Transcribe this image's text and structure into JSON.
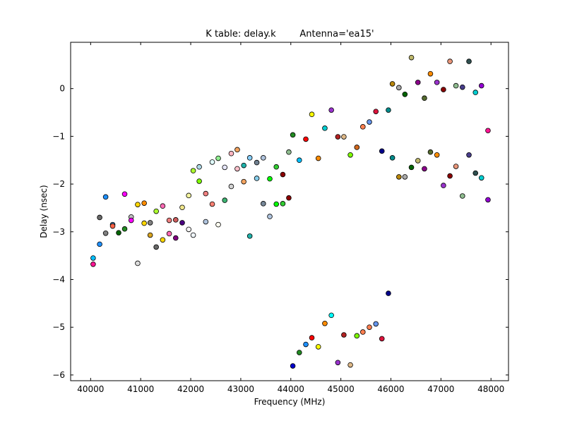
{
  "chart_data": {
    "type": "scatter",
    "title": "K table: delay.k",
    "subtitle": "Antenna='ea15'",
    "xlabel": "Frequency (MHz)",
    "ylabel": "Delay (nsec)",
    "xlim": [
      39600,
      48350
    ],
    "ylim": [
      -6.12,
      0.97
    ],
    "xticks": [
      40000,
      41000,
      42000,
      43000,
      44000,
      45000,
      46000,
      47000,
      48000
    ],
    "yticks": [
      -6,
      -5,
      -4,
      -3,
      -2,
      -1,
      0
    ],
    "grid": false,
    "marker_edge": "#000000",
    "points": [
      {
        "x": 40050,
        "y": -3.55,
        "color": "#00bfff"
      },
      {
        "x": 40050,
        "y": -3.68,
        "color": "#ff1493"
      },
      {
        "x": 40180,
        "y": -3.26,
        "color": "#1e90ff"
      },
      {
        "x": 40180,
        "y": -2.7,
        "color": "#696969"
      },
      {
        "x": 40300,
        "y": -2.27,
        "color": "#1e90ff"
      },
      {
        "x": 40300,
        "y": -3.03,
        "color": "#808080"
      },
      {
        "x": 40440,
        "y": -2.85,
        "color": "#4682b4"
      },
      {
        "x": 40440,
        "y": -2.88,
        "color": "#ff6347"
      },
      {
        "x": 40560,
        "y": -3.02,
        "color": "#006400"
      },
      {
        "x": 40680,
        "y": -2.21,
        "color": "#ff00ff"
      },
      {
        "x": 40680,
        "y": -2.94,
        "color": "#228b22"
      },
      {
        "x": 40810,
        "y": -2.69,
        "color": "#c0c0c0"
      },
      {
        "x": 40810,
        "y": -2.76,
        "color": "#ff00ff"
      },
      {
        "x": 40940,
        "y": -3.66,
        "color": "#dcdcdc"
      },
      {
        "x": 40940,
        "y": -2.43,
        "color": "#ffd700"
      },
      {
        "x": 41070,
        "y": -2.4,
        "color": "#ff8c00"
      },
      {
        "x": 41070,
        "y": -2.82,
        "color": "#ffd700"
      },
      {
        "x": 41190,
        "y": -3.07,
        "color": "#daa520"
      },
      {
        "x": 41190,
        "y": -2.81,
        "color": "#808080"
      },
      {
        "x": 41310,
        "y": -3.32,
        "color": "#696969"
      },
      {
        "x": 41310,
        "y": -2.57,
        "color": "#adff2f"
      },
      {
        "x": 41440,
        "y": -2.46,
        "color": "#ff69b4"
      },
      {
        "x": 41440,
        "y": -3.17,
        "color": "#ffd700"
      },
      {
        "x": 41570,
        "y": -3.04,
        "color": "#ff69b4"
      },
      {
        "x": 41570,
        "y": -2.76,
        "color": "#f08080"
      },
      {
        "x": 41700,
        "y": -3.13,
        "color": "#800080"
      },
      {
        "x": 41700,
        "y": -2.75,
        "color": "#cd5c5c"
      },
      {
        "x": 41830,
        "y": -2.81,
        "color": "#4b0082"
      },
      {
        "x": 41830,
        "y": -2.49,
        "color": "#f0e68c"
      },
      {
        "x": 41960,
        "y": -2.24,
        "color": "#f5f5a0"
      },
      {
        "x": 41960,
        "y": -2.95,
        "color": "#f5f5f5"
      },
      {
        "x": 42050,
        "y": -1.72,
        "color": "#adff2f"
      },
      {
        "x": 42050,
        "y": -3.07,
        "color": "#f0f8ff"
      },
      {
        "x": 42170,
        "y": -1.64,
        "color": "#add8e6"
      },
      {
        "x": 42170,
        "y": -1.94,
        "color": "#7fff00"
      },
      {
        "x": 42300,
        "y": -2.2,
        "color": "#f08080"
      },
      {
        "x": 42300,
        "y": -2.79,
        "color": "#b0c4de"
      },
      {
        "x": 42430,
        "y": -1.54,
        "color": "#e0ffff"
      },
      {
        "x": 42430,
        "y": -2.42,
        "color": "#fa8072"
      },
      {
        "x": 42550,
        "y": -1.46,
        "color": "#90ee90"
      },
      {
        "x": 42550,
        "y": -2.85,
        "color": "#fffff0"
      },
      {
        "x": 42680,
        "y": -1.65,
        "color": "#e6e6fa"
      },
      {
        "x": 42680,
        "y": -2.34,
        "color": "#3cb371"
      },
      {
        "x": 42810,
        "y": -1.36,
        "color": "#ffb6c1"
      },
      {
        "x": 42810,
        "y": -2.05,
        "color": "#d3d3d3"
      },
      {
        "x": 42930,
        "y": -1.28,
        "color": "#f4a460"
      },
      {
        "x": 42930,
        "y": -1.68,
        "color": "#ffc0cb"
      },
      {
        "x": 43060,
        "y": -1.61,
        "color": "#20b2aa"
      },
      {
        "x": 43060,
        "y": -1.95,
        "color": "#f4a460"
      },
      {
        "x": 43180,
        "y": -1.45,
        "color": "#87cefa"
      },
      {
        "x": 43180,
        "y": -3.09,
        "color": "#20b2aa"
      },
      {
        "x": 43320,
        "y": -1.88,
        "color": "#87ceeb"
      },
      {
        "x": 43320,
        "y": -1.55,
        "color": "#708090"
      },
      {
        "x": 43450,
        "y": -1.45,
        "color": "#b0c4de"
      },
      {
        "x": 43450,
        "y": -2.41,
        "color": "#778899"
      },
      {
        "x": 43580,
        "y": -1.89,
        "color": "#00ff00"
      },
      {
        "x": 43580,
        "y": -2.68,
        "color": "#b0c4de"
      },
      {
        "x": 43710,
        "y": -1.64,
        "color": "#32cd32"
      },
      {
        "x": 43710,
        "y": -2.42,
        "color": "#00ff00"
      },
      {
        "x": 43840,
        "y": -1.8,
        "color": "#8b0000"
      },
      {
        "x": 43840,
        "y": -2.41,
        "color": "#32cd32"
      },
      {
        "x": 43960,
        "y": -1.33,
        "color": "#8fbc8f"
      },
      {
        "x": 43960,
        "y": -2.29,
        "color": "#8b0000"
      },
      {
        "x": 44040,
        "y": -0.97,
        "color": "#228b22"
      },
      {
        "x": 44040,
        "y": -5.81,
        "color": "#0000cd"
      },
      {
        "x": 44170,
        "y": -1.5,
        "color": "#00bfff"
      },
      {
        "x": 44170,
        "y": -5.53,
        "color": "#228b22"
      },
      {
        "x": 44300,
        "y": -1.06,
        "color": "#ff0000"
      },
      {
        "x": 44300,
        "y": -5.36,
        "color": "#1e90ff"
      },
      {
        "x": 44420,
        "y": -0.54,
        "color": "#ffff00"
      },
      {
        "x": 44420,
        "y": -5.22,
        "color": "#ff0000"
      },
      {
        "x": 44550,
        "y": -1.46,
        "color": "#ff8c00"
      },
      {
        "x": 44550,
        "y": -5.41,
        "color": "#ffff00"
      },
      {
        "x": 44680,
        "y": -0.83,
        "color": "#00ced1"
      },
      {
        "x": 44680,
        "y": -4.92,
        "color": "#ff8c00"
      },
      {
        "x": 44810,
        "y": -0.45,
        "color": "#9932cc"
      },
      {
        "x": 44810,
        "y": -4.75,
        "color": "#00ffff"
      },
      {
        "x": 44940,
        "y": -1.01,
        "color": "#b22222"
      },
      {
        "x": 44940,
        "y": -5.74,
        "color": "#9932cc"
      },
      {
        "x": 45060,
        "y": -1.01,
        "color": "#deb887"
      },
      {
        "x": 45060,
        "y": -5.16,
        "color": "#b22222"
      },
      {
        "x": 45190,
        "y": -1.39,
        "color": "#7fff00"
      },
      {
        "x": 45190,
        "y": -5.79,
        "color": "#deb887"
      },
      {
        "x": 45320,
        "y": -1.23,
        "color": "#d2691e"
      },
      {
        "x": 45320,
        "y": -5.18,
        "color": "#7fff00"
      },
      {
        "x": 45440,
        "y": -0.8,
        "color": "#ff7f50"
      },
      {
        "x": 45440,
        "y": -5.1,
        "color": "#ff7f50"
      },
      {
        "x": 45570,
        "y": -0.7,
        "color": "#6495ed"
      },
      {
        "x": 45570,
        "y": -5.0,
        "color": "#ff7f50"
      },
      {
        "x": 45700,
        "y": -0.48,
        "color": "#dc143c"
      },
      {
        "x": 45700,
        "y": -4.93,
        "color": "#6495ed"
      },
      {
        "x": 45820,
        "y": -1.31,
        "color": "#00008b"
      },
      {
        "x": 45820,
        "y": -5.24,
        "color": "#dc143c"
      },
      {
        "x": 45950,
        "y": -0.45,
        "color": "#008b8b"
      },
      {
        "x": 45950,
        "y": -4.29,
        "color": "#00008b"
      },
      {
        "x": 46030,
        "y": 0.1,
        "color": "#b8860b"
      },
      {
        "x": 46030,
        "y": -1.45,
        "color": "#008b8b"
      },
      {
        "x": 46160,
        "y": 0.02,
        "color": "#a9a9a9"
      },
      {
        "x": 46160,
        "y": -1.85,
        "color": "#b8860b"
      },
      {
        "x": 46280,
        "y": -0.12,
        "color": "#006400"
      },
      {
        "x": 46280,
        "y": -1.85,
        "color": "#a9a9a9"
      },
      {
        "x": 46410,
        "y": 0.65,
        "color": "#bdb76b"
      },
      {
        "x": 46410,
        "y": -1.65,
        "color": "#006400"
      },
      {
        "x": 46540,
        "y": 0.13,
        "color": "#8b008b"
      },
      {
        "x": 46540,
        "y": -1.51,
        "color": "#bdb76b"
      },
      {
        "x": 46670,
        "y": -0.2,
        "color": "#556b2f"
      },
      {
        "x": 46670,
        "y": -1.68,
        "color": "#8b008b"
      },
      {
        "x": 46790,
        "y": 0.31,
        "color": "#ff8c00"
      },
      {
        "x": 46790,
        "y": -1.33,
        "color": "#556b2f"
      },
      {
        "x": 46920,
        "y": 0.13,
        "color": "#9932cc"
      },
      {
        "x": 46920,
        "y": -1.39,
        "color": "#ff8c00"
      },
      {
        "x": 47050,
        "y": -0.02,
        "color": "#8b0000"
      },
      {
        "x": 47050,
        "y": -2.03,
        "color": "#9932cc"
      },
      {
        "x": 47180,
        "y": 0.57,
        "color": "#e9967a"
      },
      {
        "x": 47180,
        "y": -1.83,
        "color": "#8b0000"
      },
      {
        "x": 47300,
        "y": 0.06,
        "color": "#8fbc8f"
      },
      {
        "x": 47300,
        "y": -1.63,
        "color": "#e9967a"
      },
      {
        "x": 47430,
        "y": 0.03,
        "color": "#483d8b"
      },
      {
        "x": 47430,
        "y": -2.25,
        "color": "#8fbc8f"
      },
      {
        "x": 47560,
        "y": 0.57,
        "color": "#2f4f4f"
      },
      {
        "x": 47560,
        "y": -1.39,
        "color": "#483d8b"
      },
      {
        "x": 47690,
        "y": -0.08,
        "color": "#00ced1"
      },
      {
        "x": 47690,
        "y": -1.77,
        "color": "#2f4f4f"
      },
      {
        "x": 47810,
        "y": 0.06,
        "color": "#9400d3"
      },
      {
        "x": 47810,
        "y": -1.87,
        "color": "#00ced1"
      },
      {
        "x": 47940,
        "y": -0.88,
        "color": "#ff1493"
      },
      {
        "x": 47940,
        "y": -2.33,
        "color": "#9400d3"
      }
    ]
  }
}
